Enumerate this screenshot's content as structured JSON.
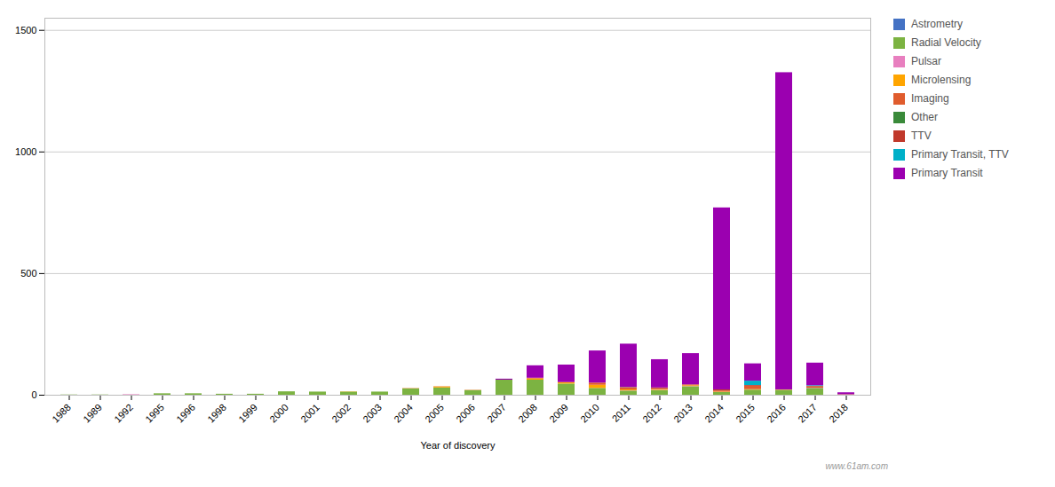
{
  "chart_data": {
    "type": "bar",
    "stacked": true,
    "xlabel": "Year of discovery",
    "categories": [
      "1988",
      "1989",
      "1992",
      "1995",
      "1996",
      "1998",
      "1999",
      "2000",
      "2001",
      "2002",
      "2003",
      "2004",
      "2005",
      "2006",
      "2007",
      "2008",
      "2009",
      "2010",
      "2011",
      "2012",
      "2013",
      "2014",
      "2015",
      "2016",
      "2017",
      "2018"
    ],
    "series": [
      {
        "name": "Astrometry",
        "color": "#4472c4",
        "values": [
          0,
          0,
          0,
          0,
          0,
          0,
          0,
          0,
          0,
          0,
          0,
          0,
          0,
          0,
          0,
          0,
          0,
          0,
          0,
          0,
          0,
          0,
          0,
          0,
          0,
          0
        ]
      },
      {
        "name": "Radial Velocity",
        "color": "#7cb342",
        "values": [
          1,
          1,
          0,
          6,
          6,
          4,
          4,
          14,
          13,
          13,
          13,
          26,
          30,
          19,
          62,
          62,
          46,
          28,
          17,
          19,
          35,
          11,
          21,
          20,
          28,
          0
        ]
      },
      {
        "name": "Pulsar",
        "color": "#e87fbf",
        "values": [
          0,
          0,
          2,
          0,
          0,
          0,
          0,
          0,
          0,
          0,
          0,
          1,
          0,
          1,
          0,
          0,
          0,
          0,
          1,
          1,
          1,
          0,
          0,
          0,
          1,
          0
        ]
      },
      {
        "name": "Microlensing",
        "color": "#ffa500",
        "values": [
          0,
          0,
          0,
          0,
          0,
          0,
          0,
          0,
          0,
          1,
          0,
          1,
          4,
          1,
          0,
          5,
          6,
          13,
          4,
          3,
          3,
          2,
          2,
          1,
          0,
          1
        ]
      },
      {
        "name": "Imaging",
        "color": "#e05c2d",
        "values": [
          0,
          0,
          0,
          0,
          0,
          0,
          0,
          0,
          0,
          0,
          0,
          0,
          1,
          0,
          0,
          3,
          0,
          9,
          9,
          3,
          2,
          4,
          14,
          1,
          7,
          1
        ]
      },
      {
        "name": "Other",
        "color": "#3a8a3a",
        "values": [
          0,
          0,
          0,
          0,
          0,
          0,
          0,
          0,
          0,
          0,
          0,
          0,
          0,
          0,
          0,
          0,
          0,
          0,
          1,
          0,
          0,
          0,
          0,
          0,
          0,
          0
        ]
      },
      {
        "name": "TTV",
        "color": "#c0392b",
        "values": [
          0,
          0,
          0,
          0,
          0,
          0,
          0,
          0,
          0,
          0,
          0,
          0,
          0,
          0,
          0,
          0,
          0,
          0,
          0,
          4,
          2,
          5,
          3,
          0,
          0,
          0
        ]
      },
      {
        "name": "Primary Transit, TTV",
        "color": "#00b0c8",
        "values": [
          0,
          0,
          0,
          0,
          0,
          0,
          0,
          0,
          0,
          0,
          0,
          0,
          0,
          0,
          0,
          0,
          0,
          0,
          0,
          0,
          0,
          0,
          18,
          0,
          3,
          0
        ]
      },
      {
        "name": "Primary Transit",
        "color": "#9b00b0",
        "values": [
          0,
          0,
          0,
          0,
          0,
          0,
          0,
          0,
          0,
          0,
          0,
          0,
          0,
          0,
          4,
          51,
          72,
          132,
          178,
          116,
          128,
          748,
          71,
          1304,
          93,
          8
        ]
      }
    ],
    "ylim": [
      0,
      1550
    ],
    "yticks": [
      0,
      500,
      1000,
      1500
    ],
    "grid": true,
    "legend": "upper right",
    "annotations": [
      "www.61am.com"
    ]
  }
}
